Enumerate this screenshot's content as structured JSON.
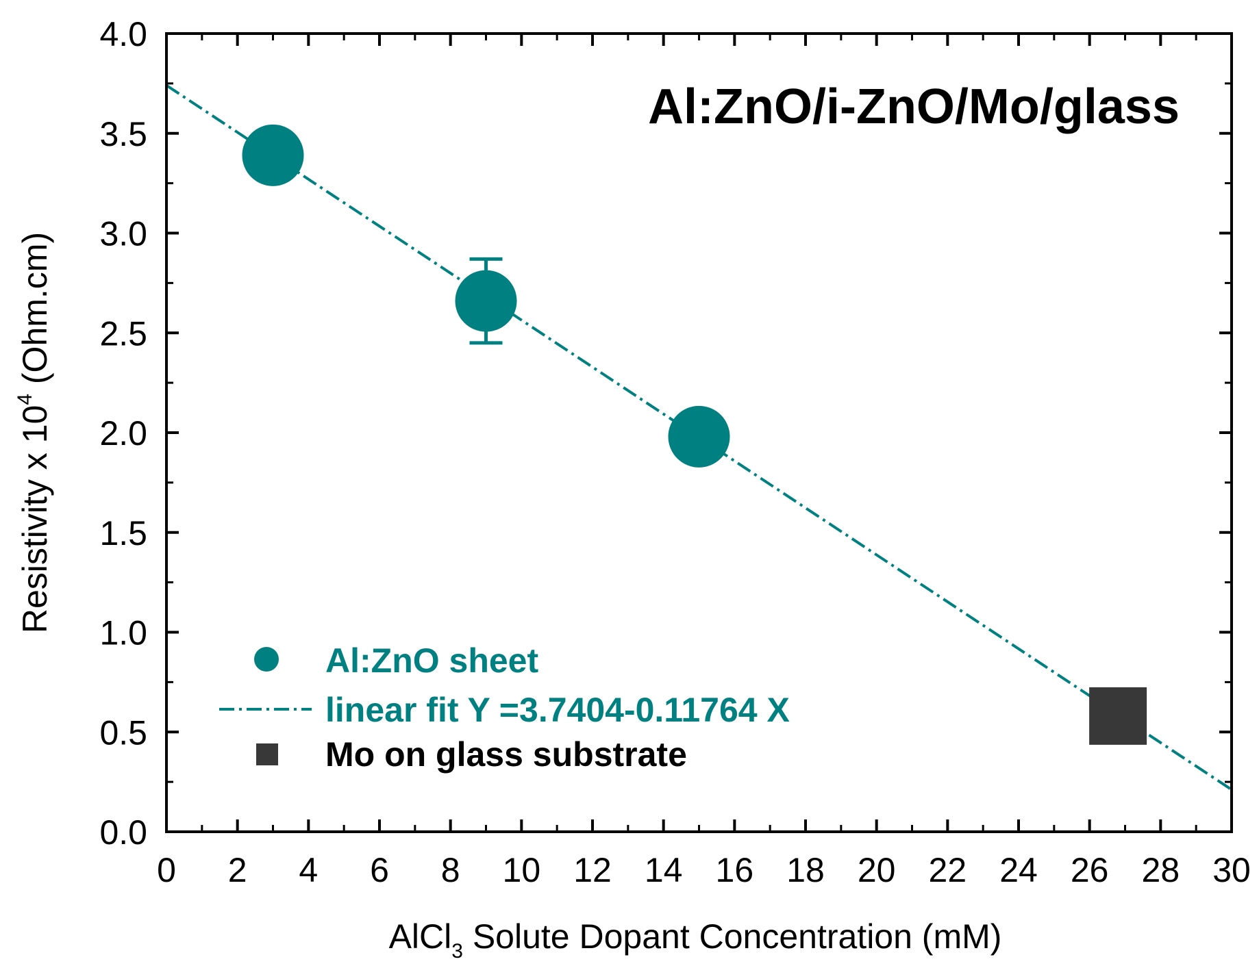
{
  "chart_data": {
    "type": "scatter",
    "title": "",
    "annotation": "Al:ZnO/i-ZnO/Mo/glass",
    "xlabel": {
      "main": "AlCl",
      "sub": "3",
      "rest": " Solute Dopant Concentration (mM)"
    },
    "ylabel": {
      "main": "Resistivity x 10",
      "sup": "4",
      "rest": " (Ohm.cm)"
    },
    "xlim": [
      0,
      30
    ],
    "ylim": [
      0,
      4
    ],
    "x_ticks": [
      0,
      2,
      4,
      6,
      8,
      10,
      12,
      14,
      16,
      18,
      20,
      22,
      24,
      26,
      28,
      30
    ],
    "x_tick_labels": [
      "0",
      "2",
      "4",
      "6",
      "8",
      "10",
      "12",
      "14",
      "16",
      "18",
      "20",
      "22",
      "24",
      "26",
      "28",
      "30"
    ],
    "y_ticks": [
      0,
      0.5,
      1.0,
      1.5,
      2.0,
      2.5,
      3.0,
      3.5,
      4.0
    ],
    "y_tick_labels": [
      "0.0",
      "0.5",
      "1.0",
      "1.5",
      "2.0",
      "2.5",
      "3.0",
      "3.5",
      "4.0"
    ],
    "grid": false,
    "legend_position": "bottom-left",
    "series": [
      {
        "name": "Al:ZnO sheet",
        "kind": "scatter",
        "marker": "circle",
        "color": "#008080",
        "points": [
          {
            "x": 3,
            "y": 3.39,
            "err": 0
          },
          {
            "x": 9,
            "y": 2.66,
            "err": 0.21
          },
          {
            "x": 15,
            "y": 1.98,
            "err": 0
          }
        ]
      },
      {
        "name": "linear fit Y =3.7404-0.11764 X",
        "kind": "line",
        "style": "dash-dot",
        "color": "#008080",
        "intercept": 3.7404,
        "slope": -0.11764
      },
      {
        "name": "Mo on glass substrate",
        "kind": "scatter",
        "marker": "square",
        "color": "#383838",
        "points": [
          {
            "x": 26.8,
            "y": 0.58
          }
        ]
      }
    ]
  }
}
